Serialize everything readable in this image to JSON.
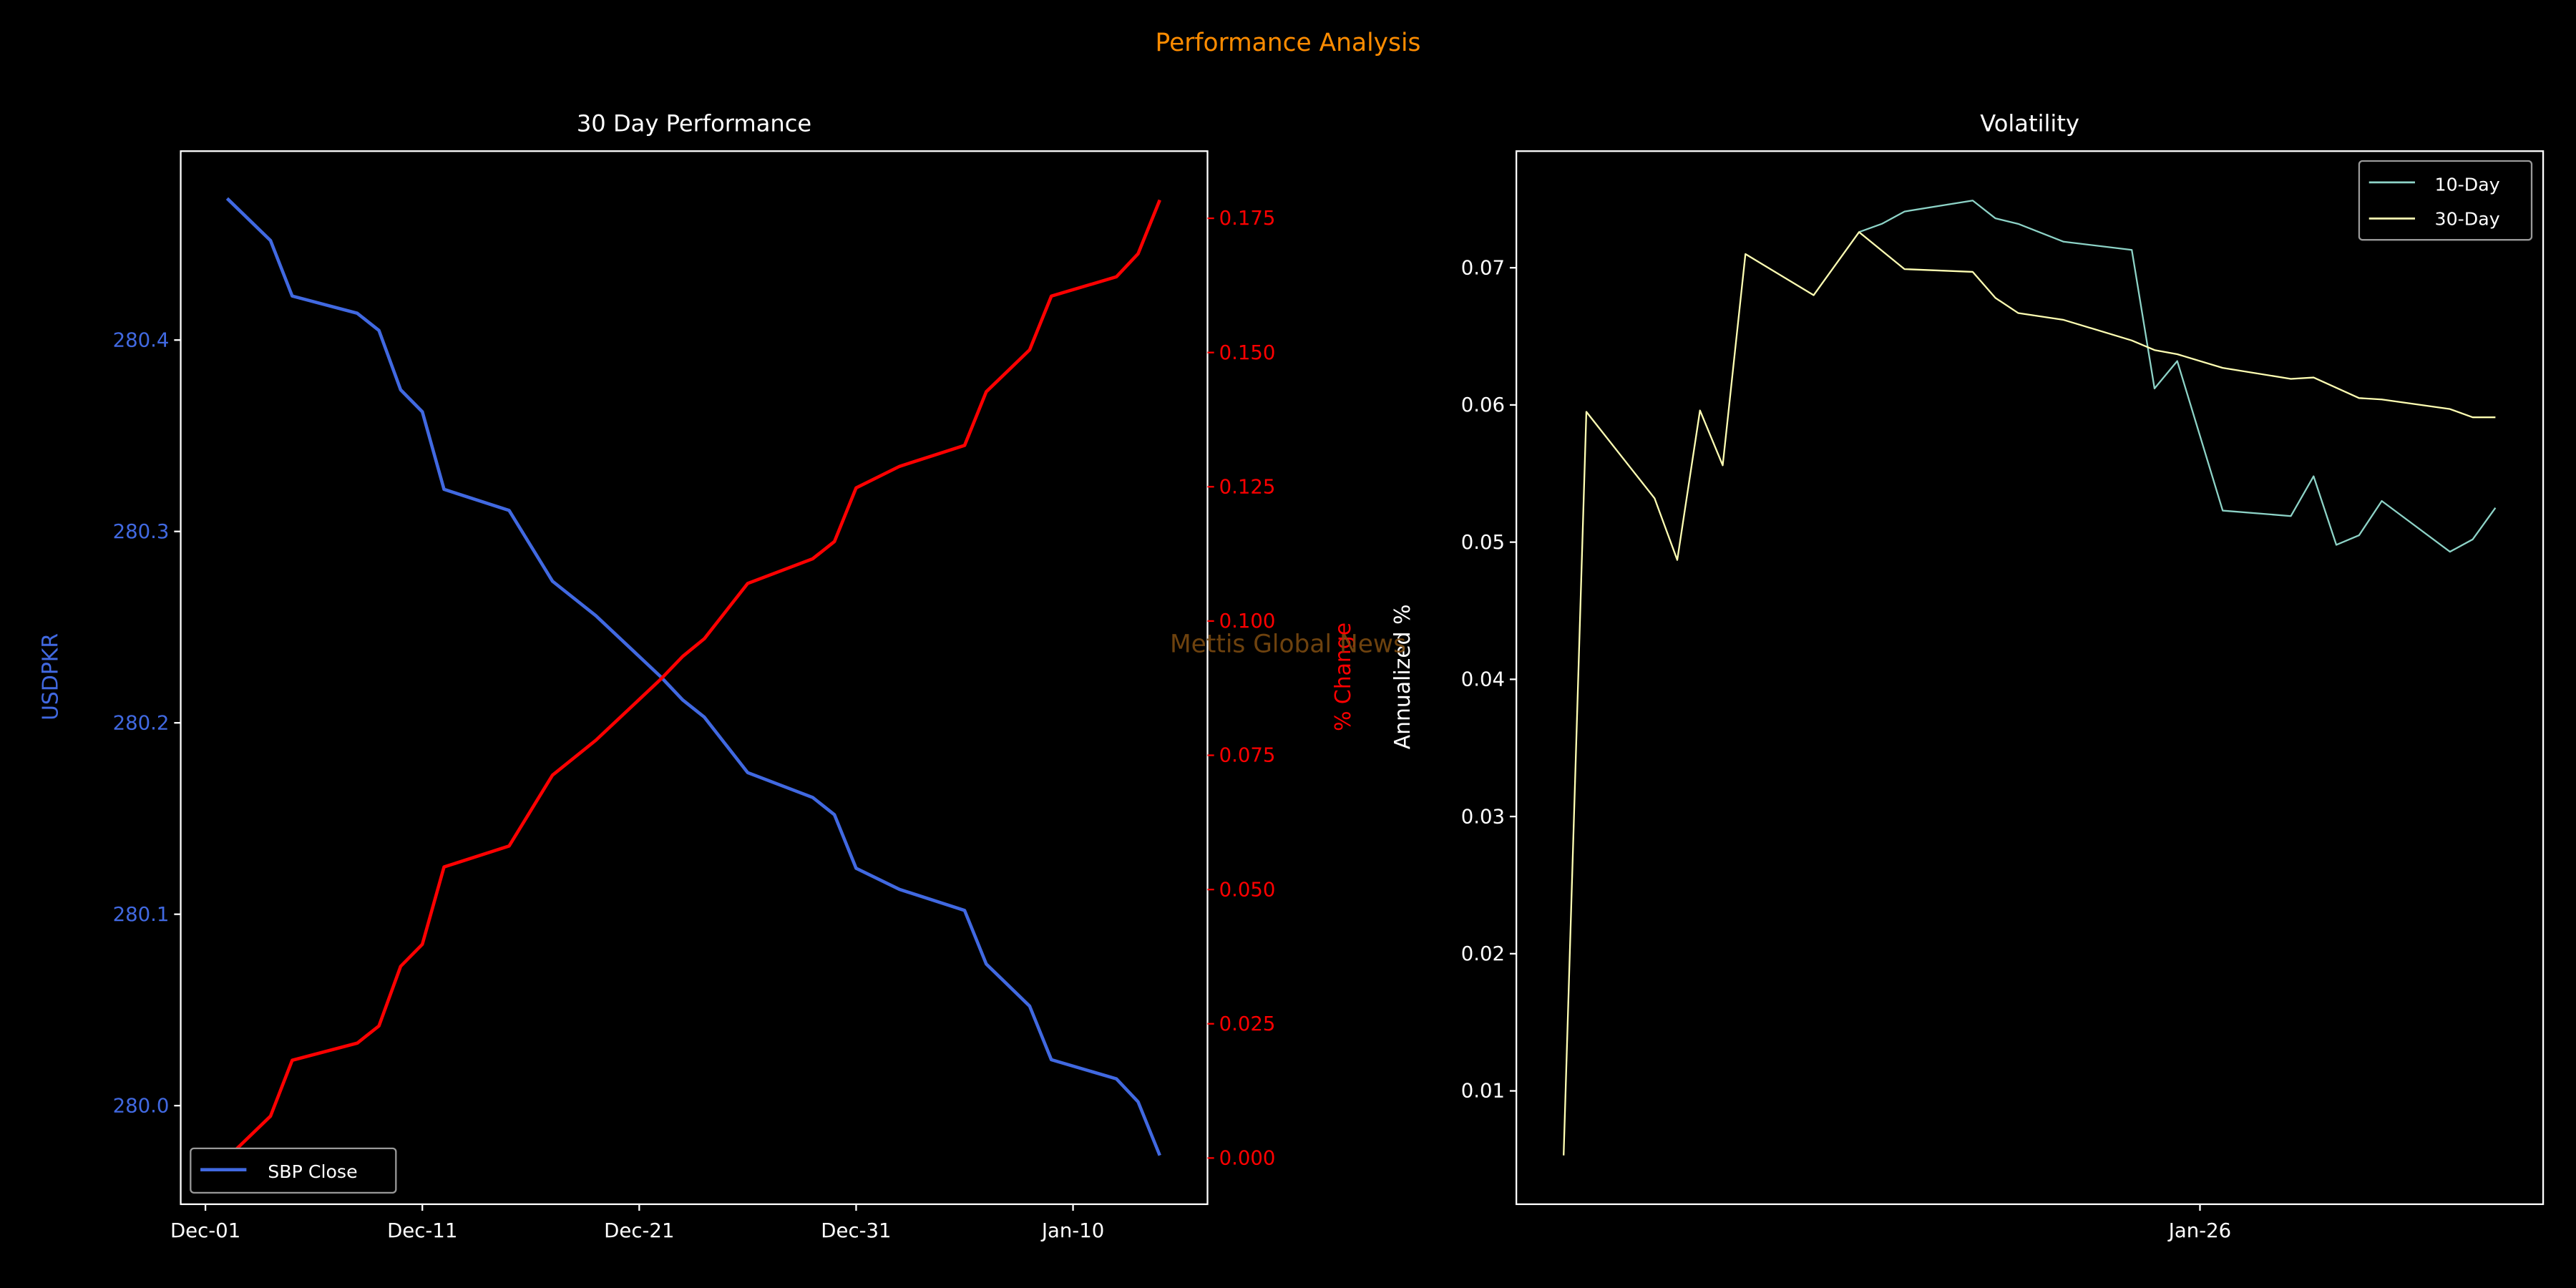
{
  "suptitle": "Performance Analysis",
  "watermark": "Mettis Global News",
  "colors": {
    "suptitle": "#ff8c00",
    "sbp_close": "#4169e1",
    "pct_change": "#ff0000",
    "ten_day": "#8dd3c7",
    "thirty_day": "#ffffb3",
    "watermark": "#7a4a10",
    "axes": "#ffffff"
  },
  "chart_data": [
    {
      "type": "line",
      "title": "30 Day Performance",
      "xlabel": "",
      "ylabel": "USDPKR",
      "ylabel_right": "% Change",
      "x_unit": "days since Dec-01",
      "xlim": [
        -1.14,
        46.2
      ],
      "ylim": [
        279.9485,
        280.4987
      ],
      "ylim_right": [
        -0.0086,
        0.1875
      ],
      "x_ticks": [
        {
          "x": 0,
          "label": "Dec-01"
        },
        {
          "x": 10,
          "label": "Dec-11"
        },
        {
          "x": 20,
          "label": "Dec-21"
        },
        {
          "x": 30,
          "label": "Dec-31"
        },
        {
          "x": 40,
          "label": "Jan-10"
        }
      ],
      "y_ticks": [
        {
          "y": 280.0,
          "label": "280.0"
        },
        {
          "y": 280.1,
          "label": "280.1"
        },
        {
          "y": 280.2,
          "label": "280.2"
        },
        {
          "y": 280.3,
          "label": "280.3"
        },
        {
          "y": 280.4,
          "label": "280.4"
        }
      ],
      "y_ticks_right": [
        {
          "y": 0,
          "label": "0.000"
        },
        {
          "y": 0.025,
          "label": "0.025"
        },
        {
          "y": 0.05,
          "label": "0.050"
        },
        {
          "y": 0.075,
          "label": "0.075"
        },
        {
          "y": 0.1,
          "label": "0.100"
        },
        {
          "y": 0.125,
          "label": "0.125"
        },
        {
          "y": 0.15,
          "label": "0.150"
        },
        {
          "y": 0.175,
          "label": "0.175"
        }
      ],
      "legend": {
        "placement": "lower-left",
        "entries": [
          "SBP Close"
        ]
      },
      "x": [
        1,
        3,
        4,
        7,
        8,
        9,
        10,
        11,
        14,
        16,
        18,
        21,
        22,
        23,
        25,
        28,
        29,
        30,
        32,
        35,
        36,
        38,
        39,
        42,
        43,
        44
      ],
      "series": [
        {
          "name": "SBP Close",
          "axis": "left",
          "values": [
            280.474,
            280.452,
            280.423,
            280.414,
            280.405,
            280.374,
            280.3625,
            280.322,
            280.311,
            280.274,
            280.256,
            280.224,
            280.212,
            280.203,
            280.174,
            280.161,
            280.152,
            280.124,
            280.113,
            280.102,
            280.074,
            280.052,
            280.024,
            280.014,
            280.002,
            279.974
          ]
        },
        {
          "name": "% Change",
          "axis": "right",
          "values": [
            0,
            0.0078,
            0.0182,
            0.0214,
            0.0246,
            0.0357,
            0.0398,
            0.0542,
            0.0581,
            0.0713,
            0.0778,
            0.0892,
            0.0934,
            0.0967,
            0.107,
            0.1116,
            0.1148,
            0.1248,
            0.1288,
            0.1327,
            0.1427,
            0.1505,
            0.1605,
            0.1641,
            0.1684,
            0.1784
          ]
        }
      ]
    },
    {
      "type": "line",
      "title": "Volatility",
      "xlabel": "",
      "ylabel": "Annualized %",
      "x_unit": "days since Dec-01",
      "xlim": [
        0.92,
        46.1
      ],
      "ylim": [
        0.00174,
        0.0785
      ],
      "x_ticks": [
        {
          "x": 31,
          "label": "Jan-26"
        }
      ],
      "y_ticks": [
        {
          "y": 0.01,
          "label": "0.01"
        },
        {
          "y": 0.02,
          "label": "0.02"
        },
        {
          "y": 0.03,
          "label": "0.03"
        },
        {
          "y": 0.04,
          "label": "0.04"
        },
        {
          "y": 0.05,
          "label": "0.05"
        },
        {
          "y": 0.06,
          "label": "0.06"
        },
        {
          "y": 0.07,
          "label": "0.07"
        }
      ],
      "legend": {
        "placement": "top-right",
        "entries": [
          "10-Day",
          "30-Day"
        ]
      },
      "series": [
        {
          "name": "10-Day",
          "x": [
            16,
            17,
            18,
            21,
            22,
            23,
            25,
            28,
            29,
            30,
            32,
            35,
            36,
            37,
            38,
            39,
            42,
            43,
            44
          ],
          "values": [
            0.0726,
            0.0732,
            0.0741,
            0.0749,
            0.0736,
            0.0732,
            0.0719,
            0.0713,
            0.0612,
            0.0632,
            0.0523,
            0.0519,
            0.0548,
            0.0498,
            0.0505,
            0.053,
            0.0493,
            0.0502,
            0.0525
          ]
        },
        {
          "name": "30-Day",
          "x": [
            3,
            4,
            7,
            8,
            9,
            10,
            11,
            14,
            16,
            18,
            21,
            22,
            23,
            25,
            28,
            29,
            30,
            32,
            35,
            36,
            38,
            39,
            42,
            43,
            44
          ],
          "values": [
            0.0053,
            0.0595,
            0.0532,
            0.0487,
            0.0596,
            0.0556,
            0.071,
            0.068,
            0.0726,
            0.0699,
            0.0697,
            0.0678,
            0.0667,
            0.0662,
            0.0647,
            0.064,
            0.0637,
            0.0627,
            0.0619,
            0.062,
            0.0605,
            0.0604,
            0.0597,
            0.0591,
            0.0591
          ]
        }
      ]
    }
  ]
}
